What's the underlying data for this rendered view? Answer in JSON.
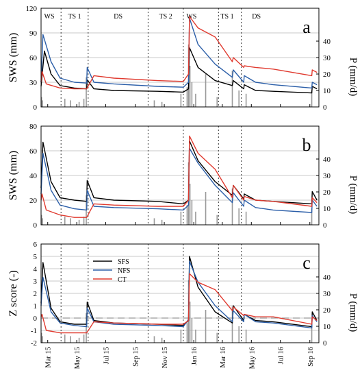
{
  "chart_data": [
    {
      "type": "line",
      "panel": "a",
      "ylabel": "SWS (mm)",
      "y2label": "P (mm/d)",
      "ylim": [
        0,
        120
      ],
      "yticks": [
        "0",
        "30",
        "60",
        "90",
        "120"
      ],
      "y2lim": [
        0,
        60
      ],
      "y2ticks": [
        "0",
        "10",
        "20",
        "30",
        "40"
      ],
      "grid": "horizontal",
      "seasons": [
        "WS",
        "TS 1",
        "DS",
        "TS 2",
        "WS",
        "TS 1",
        "DS"
      ],
      "series": [
        {
          "name": "SFS",
          "color": "#000000",
          "x": [
            "2015-03-01",
            "2015-03-08",
            "2015-03-22",
            "2015-04-10",
            "2015-05-10",
            "2015-06-05",
            "2015-06-06",
            "2015-06-20",
            "2015-08-01",
            "2015-11-01",
            "2015-12-25",
            "2016-01-05",
            "2016-01-07",
            "2016-01-25",
            "2016-03-01",
            "2016-04-06",
            "2016-04-08",
            "2016-04-30",
            "2016-05-01",
            "2016-05-25",
            "2016-07-01",
            "2016-09-20",
            "2016-09-21",
            "2016-10-01"
          ],
          "values": [
            25,
            68,
            40,
            26,
            23,
            22,
            33,
            22,
            20,
            19,
            18,
            22,
            72,
            48,
            32,
            26,
            32,
            22,
            27,
            20,
            19,
            17,
            25,
            22
          ]
        },
        {
          "name": "NFS",
          "color": "#2b5ea8",
          "x": [
            "2015-03-01",
            "2015-03-05",
            "2015-03-22",
            "2015-04-10",
            "2015-05-10",
            "2015-06-05",
            "2015-06-06",
            "2015-06-20",
            "2015-08-01",
            "2015-11-01",
            "2015-12-25",
            "2016-01-05",
            "2016-01-07",
            "2016-01-25",
            "2016-03-01",
            "2016-04-06",
            "2016-04-08",
            "2016-04-30",
            "2016-05-01",
            "2016-05-25",
            "2016-07-01",
            "2016-09-20",
            "2016-09-21",
            "2016-10-01"
          ],
          "values": [
            30,
            88,
            55,
            35,
            30,
            29,
            48,
            30,
            28,
            25,
            24,
            30,
            108,
            76,
            52,
            36,
            45,
            30,
            38,
            30,
            27,
            23,
            30,
            27
          ]
        },
        {
          "name": "CT",
          "color": "#e03a2f",
          "x": [
            "2015-03-01",
            "2015-03-03",
            "2015-03-12",
            "2015-04-10",
            "2015-05-10",
            "2015-06-05",
            "2015-06-20",
            "2015-08-01",
            "2015-11-01",
            "2015-12-25",
            "2016-01-05",
            "2016-01-07",
            "2016-01-25",
            "2016-03-01",
            "2016-04-06",
            "2016-04-08",
            "2016-04-30",
            "2016-05-01",
            "2016-05-25",
            "2016-07-01",
            "2016-09-20",
            "2016-09-21",
            "2016-10-01"
          ],
          "values": [
            30,
            43,
            28,
            23,
            22,
            22,
            38,
            35,
            32,
            31,
            40,
            110,
            96,
            85,
            55,
            60,
            48,
            50,
            48,
            46,
            38,
            45,
            42
          ]
        }
      ],
      "precipitation": {
        "name": "P",
        "color": "#999999",
        "x": [
          "2015-03-02",
          "2015-03-04",
          "2015-04-20",
          "2015-05-02",
          "2015-05-20",
          "2015-05-30",
          "2015-06-04",
          "2015-10-25",
          "2015-11-10",
          "2015-12-20",
          "2016-01-02",
          "2016-01-05",
          "2016-01-08",
          "2016-01-12",
          "2016-01-20",
          "2016-02-10",
          "2016-03-05",
          "2016-04-06",
          "2016-04-20",
          "2016-05-05",
          "2016-09-20"
        ],
        "values": [
          6,
          4,
          5,
          4,
          3,
          5,
          18,
          4,
          3,
          8,
          12,
          38,
          25,
          15,
          8,
          20,
          6,
          22,
          10,
          8,
          10
        ]
      }
    },
    {
      "type": "line",
      "panel": "b",
      "ylabel": "SWS (mm)",
      "y2label": "P (mm/d)",
      "ylim": [
        0,
        80
      ],
      "yticks": [
        "0",
        "20",
        "40",
        "60",
        "80"
      ],
      "y2lim": [
        0,
        60
      ],
      "y2ticks": [
        "0",
        "10",
        "20",
        "30",
        "40"
      ],
      "grid": "horizontal",
      "series": [
        {
          "name": "SFS",
          "color": "#000000",
          "x": [
            "2015-03-01",
            "2015-03-05",
            "2015-03-22",
            "2015-04-10",
            "2015-05-10",
            "2015-06-05",
            "2015-06-06",
            "2015-06-20",
            "2015-08-01",
            "2015-11-01",
            "2015-12-25",
            "2016-01-05",
            "2016-01-07",
            "2016-01-25",
            "2016-03-01",
            "2016-04-06",
            "2016-04-08",
            "2016-04-30",
            "2016-05-01",
            "2016-05-25",
            "2016-07-01",
            "2016-09-20",
            "2016-09-21",
            "2016-10-01"
          ],
          "values": [
            30,
            67,
            35,
            22,
            20,
            19,
            36,
            22,
            20,
            19,
            17,
            20,
            68,
            52,
            35,
            24,
            32,
            21,
            25,
            20,
            19,
            17,
            27,
            20
          ]
        },
        {
          "name": "NFS",
          "color": "#2b5ea8",
          "x": [
            "2015-03-01",
            "2015-03-05",
            "2015-03-22",
            "2015-04-10",
            "2015-05-10",
            "2015-06-05",
            "2015-06-06",
            "2015-06-20",
            "2015-08-01",
            "2015-11-01",
            "2015-12-25",
            "2016-01-05",
            "2016-01-07",
            "2016-01-25",
            "2016-03-01",
            "2016-04-06",
            "2016-04-08",
            "2016-04-30",
            "2016-05-01",
            "2016-05-25",
            "2016-07-01",
            "2016-09-20",
            "2016-09-21",
            "2016-10-01"
          ],
          "values": [
            25,
            58,
            28,
            16,
            13,
            12,
            28,
            15,
            14,
            13,
            12,
            16,
            62,
            50,
            32,
            18,
            26,
            15,
            20,
            14,
            12,
            10,
            20,
            15
          ]
        },
        {
          "name": "CT",
          "color": "#e03a2f",
          "x": [
            "2015-03-01",
            "2015-03-03",
            "2015-03-12",
            "2015-04-10",
            "2015-05-10",
            "2015-06-05",
            "2015-06-20",
            "2015-08-01",
            "2015-11-01",
            "2015-12-25",
            "2016-01-05",
            "2016-01-07",
            "2016-01-25",
            "2016-03-01",
            "2016-04-06",
            "2016-04-08",
            "2016-04-30",
            "2016-05-01",
            "2016-05-25",
            "2016-07-01",
            "2016-09-20",
            "2016-09-21",
            "2016-10-01"
          ],
          "values": [
            20,
            25,
            12,
            8,
            6,
            6,
            17,
            16,
            15,
            15,
            20,
            72,
            58,
            45,
            22,
            32,
            20,
            23,
            20,
            19,
            15,
            22,
            18
          ]
        }
      ],
      "precipitation": {
        "name": "P",
        "color": "#999999",
        "x": [
          "2015-03-02",
          "2015-03-04",
          "2015-04-20",
          "2015-05-02",
          "2015-05-20",
          "2015-05-30",
          "2015-06-04",
          "2015-10-25",
          "2015-11-10",
          "2015-12-20",
          "2016-01-02",
          "2016-01-05",
          "2016-01-08",
          "2016-01-12",
          "2016-01-20",
          "2016-02-10",
          "2016-03-05",
          "2016-04-06",
          "2016-04-20",
          "2016-05-05",
          "2016-09-20"
        ],
        "values": [
          6,
          4,
          5,
          4,
          3,
          5,
          18,
          4,
          3,
          8,
          12,
          38,
          25,
          15,
          8,
          20,
          6,
          22,
          10,
          8,
          10
        ]
      }
    },
    {
      "type": "line",
      "panel": "c",
      "ylabel": "Z score (-)",
      "y2label": "P (mm/d)",
      "ylim": [
        -2,
        6
      ],
      "yticks": [
        "-2",
        "-1",
        "0",
        "1",
        "2",
        "3",
        "4",
        "5",
        "6"
      ],
      "y2lim": [
        0,
        60
      ],
      "y2ticks": [
        "0",
        "10",
        "20",
        "30",
        "40"
      ],
      "grid": "horizontal",
      "legend": "top-left",
      "series": [
        {
          "name": "SFS",
          "color": "#000000",
          "x": [
            "2015-03-01",
            "2015-03-05",
            "2015-03-22",
            "2015-04-10",
            "2015-05-10",
            "2015-06-05",
            "2015-06-06",
            "2015-06-20",
            "2015-08-01",
            "2015-11-01",
            "2015-12-25",
            "2016-01-05",
            "2016-01-07",
            "2016-01-25",
            "2016-03-01",
            "2016-04-06",
            "2016-04-08",
            "2016-04-30",
            "2016-05-01",
            "2016-05-25",
            "2016-07-01",
            "2016-09-20",
            "2016-09-21",
            "2016-10-01"
          ],
          "values": [
            1.2,
            4.5,
            0.8,
            -0.3,
            -0.5,
            -0.5,
            1.3,
            -0.2,
            -0.4,
            -0.5,
            -0.6,
            -0.2,
            5.0,
            2.5,
            0.5,
            -0.4,
            1.0,
            -0.2,
            0.3,
            -0.2,
            -0.3,
            -0.7,
            0.5,
            -0.2
          ]
        },
        {
          "name": "NFS",
          "color": "#2b5ea8",
          "x": [
            "2015-03-01",
            "2015-03-05",
            "2015-03-22",
            "2015-04-10",
            "2015-05-10",
            "2015-06-05",
            "2015-06-06",
            "2015-06-20",
            "2015-08-01",
            "2015-11-01",
            "2015-12-25",
            "2016-01-05",
            "2016-01-07",
            "2016-01-25",
            "2016-03-01",
            "2016-04-06",
            "2016-04-08",
            "2016-04-30",
            "2016-05-01",
            "2016-05-25",
            "2016-07-01",
            "2016-09-20",
            "2016-09-21",
            "2016-10-01"
          ],
          "values": [
            1.0,
            3.3,
            0.5,
            -0.4,
            -0.6,
            -0.7,
            0.8,
            -0.3,
            -0.5,
            -0.6,
            -0.7,
            -0.1,
            4.6,
            2.9,
            1.0,
            -0.3,
            0.6,
            -0.3,
            0.3,
            -0.3,
            -0.4,
            -0.8,
            0.2,
            -0.3
          ]
        },
        {
          "name": "CT",
          "color": "#e03a2f",
          "x": [
            "2015-03-01",
            "2015-03-03",
            "2015-03-12",
            "2015-04-10",
            "2015-05-10",
            "2015-06-05",
            "2015-06-20",
            "2015-08-01",
            "2015-11-01",
            "2015-12-25",
            "2016-01-05",
            "2016-01-07",
            "2016-01-25",
            "2016-03-01",
            "2016-04-06",
            "2016-04-08",
            "2016-04-30",
            "2016-05-01",
            "2016-05-25",
            "2016-07-01",
            "2016-09-20",
            "2016-09-21",
            "2016-10-01"
          ],
          "values": [
            0.1,
            0.3,
            -1.0,
            -1.2,
            -1.2,
            -1.2,
            -0.3,
            -0.4,
            -0.5,
            -0.5,
            -0.2,
            3.6,
            2.9,
            2.3,
            0.6,
            0.9,
            0.2,
            0.3,
            0.1,
            0.1,
            -0.5,
            0.1,
            -0.2
          ]
        }
      ],
      "precipitation": {
        "name": "P",
        "color": "#999999",
        "x": [
          "2015-03-02",
          "2015-03-04",
          "2015-04-20",
          "2015-05-02",
          "2015-05-20",
          "2015-05-30",
          "2015-06-04",
          "2015-10-25",
          "2015-11-10",
          "2015-12-20",
          "2016-01-02",
          "2016-01-05",
          "2016-01-08",
          "2016-01-12",
          "2016-01-20",
          "2016-02-10",
          "2016-03-05",
          "2016-04-06",
          "2016-04-20",
          "2016-05-05",
          "2016-09-20"
        ],
        "values": [
          6,
          4,
          5,
          4,
          3,
          5,
          18,
          4,
          3,
          8,
          12,
          38,
          25,
          15,
          8,
          20,
          6,
          22,
          10,
          8,
          10
        ]
      }
    }
  ],
  "season_bounds": [
    "2015-04-12",
    "2015-06-08",
    "2015-10-12",
    "2015-12-25",
    "2016-03-08",
    "2016-04-25"
  ],
  "x_ticks": [
    "2015-03-15",
    "2015-05-15",
    "2015-07-15",
    "2015-09-15",
    "2015-11-15",
    "2016-01-16",
    "2016-03-16",
    "2016-05-16",
    "2016-07-16",
    "2016-09-16"
  ],
  "x_tick_labels": [
    "Mar 15",
    "May 15",
    "Jul 15",
    "Sep 15",
    "Nov 15",
    "Jan 16",
    "Mar 16",
    "May 16",
    "Jul 16",
    "Sep 16"
  ],
  "x_range": [
    "2015-03-01",
    "2016-10-05"
  ],
  "panel_letters": [
    "a",
    "b",
    "c"
  ],
  "legend_labels": [
    "SFS",
    "NFS",
    "CT"
  ]
}
